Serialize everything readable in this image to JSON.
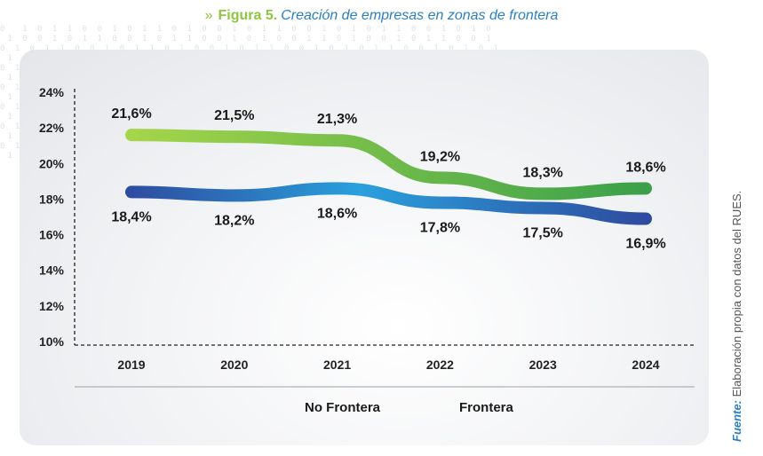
{
  "title": {
    "arrows": "»",
    "figure_label": "Figura 5.",
    "caption": "Creación de empresas en zonas de frontera"
  },
  "source": {
    "label": "Fuente:",
    "text": "Elaboración propia con datos del RUES."
  },
  "colors": {
    "no_frontera_start": "#2e4a9e",
    "no_frontera_mid": "#2aa0dc",
    "frontera_start": "#a6d64a",
    "frontera_end": "#3aa04a",
    "title_blue": "#2b7fc3",
    "title_green": "#8dc63f"
  },
  "chart_data": {
    "type": "line",
    "title": "Creación de empresas en zonas de frontera",
    "categories": [
      "2019",
      "2020",
      "2021",
      "2022",
      "2023",
      "2024"
    ],
    "series": [
      {
        "name": "No Frontera",
        "values": [
          18.4,
          18.2,
          18.6,
          17.8,
          17.5,
          16.9
        ],
        "labels": [
          "18,4%",
          "18,2%",
          "18,6%",
          "17,8%",
          "17,5%",
          "16,9%"
        ]
      },
      {
        "name": "Frontera",
        "values": [
          21.6,
          21.5,
          21.3,
          19.2,
          18.3,
          18.6
        ],
        "labels": [
          "21,6%",
          "21,5%",
          "21,3%",
          "19,2%",
          "18,3%",
          "18,6%"
        ]
      }
    ],
    "yticks": [
      "24%",
      "22%",
      "20%",
      "18%",
      "16%",
      "14%",
      "12%",
      "10%"
    ],
    "ytick_values": [
      24,
      22,
      20,
      18,
      16,
      14,
      12,
      10
    ],
    "ylim": [
      10,
      24
    ],
    "xlabel": "",
    "ylabel": "",
    "legend": "bottom"
  }
}
